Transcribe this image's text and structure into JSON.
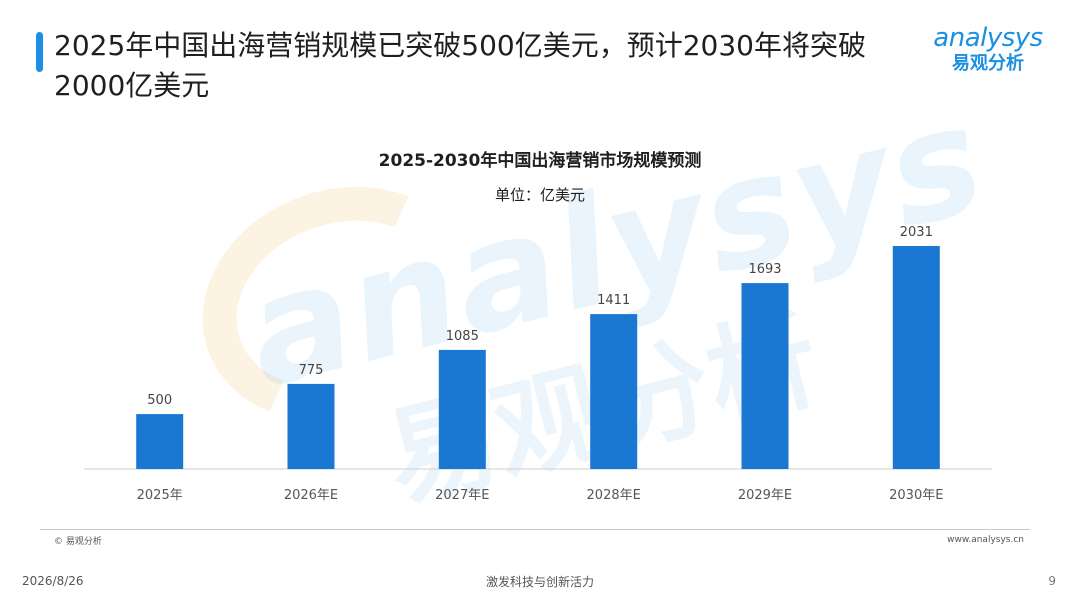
{
  "header": {
    "title": "2025年中国出海营销规模已突破500亿美元，预计2030年将突破2000亿美元",
    "brand_latin": "analysys",
    "brand_cn": "易观分析",
    "accent_color": "#1a8fe3"
  },
  "watermark": {
    "latin": "analysys",
    "cn": "易观分析"
  },
  "chart_data": {
    "type": "bar",
    "title": "2025-2030年中国出海营销市场规模预测",
    "subtitle": "单位：亿美元",
    "categories": [
      "2025年",
      "2026年E",
      "2027年E",
      "2028年E",
      "2029年E",
      "2030年E"
    ],
    "values": [
      500,
      775,
      1085,
      1411,
      1693,
      2031
    ],
    "ylim": [
      0,
      2250
    ],
    "grid": false,
    "data_labels": true,
    "bar_color": "#1a77d2"
  },
  "footer": {
    "source": "© 易观分析",
    "website": "www.analysys.cn",
    "date": "2026/8/26",
    "tagline": "激发科技与创新活力",
    "page_number": "9"
  }
}
